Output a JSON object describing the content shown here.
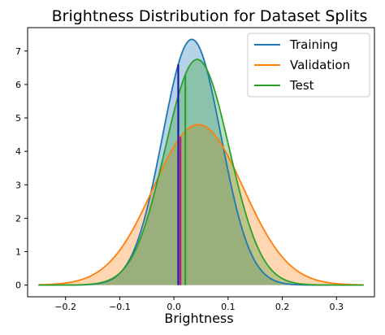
{
  "chart_data": {
    "type": "area",
    "title": "Brightness Distribution for Dataset Splits",
    "xlabel": "Brightness",
    "ylabel": "",
    "xlim": [
      -0.27,
      0.37
    ],
    "ylim": [
      -0.35,
      7.7
    ],
    "x_ticks": [
      -0.2,
      -0.1,
      0.0,
      0.1,
      0.2,
      0.3
    ],
    "x_tick_labels": [
      "−0.2",
      "−0.1",
      "0.0",
      "0.1",
      "0.2",
      "0.3"
    ],
    "y_ticks": [
      0,
      1,
      2,
      3,
      4,
      5,
      6,
      7
    ],
    "y_tick_labels": [
      "0",
      "1",
      "2",
      "3",
      "4",
      "5",
      "6",
      "7"
    ],
    "x_range": [
      -0.25,
      0.35
    ],
    "legend_position": "top-right",
    "series": [
      {
        "name": "Training",
        "color": "#1f77b4",
        "peak_x": 0.033,
        "peak_y": 7.35,
        "std": 0.054,
        "marker_x": 0.008,
        "marker_color": "#1a1aa6"
      },
      {
        "name": "Validation",
        "color": "#ff7f0e",
        "peak_x": 0.045,
        "peak_y": 4.8,
        "std": 0.083,
        "marker_x": 0.012,
        "marker_color": "#c4177f"
      },
      {
        "name": "Test",
        "color": "#2ca02c",
        "peak_x": 0.043,
        "peak_y": 6.75,
        "std": 0.059,
        "marker_x": 0.021,
        "marker_color": "#2ca02c"
      }
    ]
  }
}
